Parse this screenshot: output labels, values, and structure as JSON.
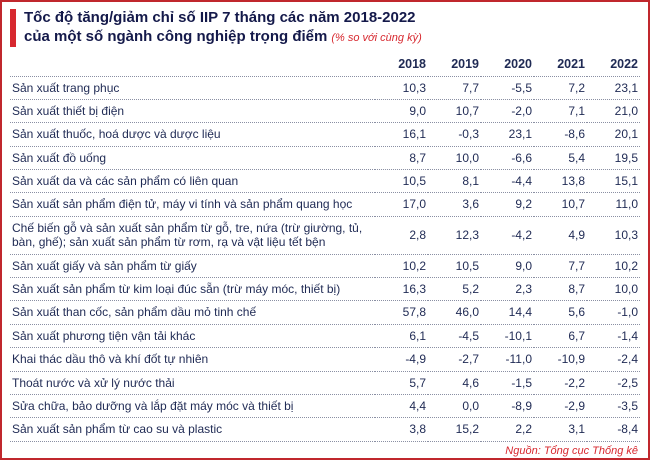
{
  "header": {
    "title_line1": "Tốc độ tăng/giảm chỉ số IIP 7 tháng các năm 2018-2022",
    "title_line2": "của một số ngành công nghiệp trọng điểm",
    "title_note": "(% so với cùng kỳ)"
  },
  "chart_data": {
    "type": "table",
    "columns": [
      "2018",
      "2019",
      "2020",
      "2021",
      "2022"
    ],
    "rows": [
      {
        "label": "Sản xuất trang phục",
        "values": [
          "10,3",
          "7,7",
          "-5,5",
          "7,2",
          "23,1"
        ]
      },
      {
        "label": "Sản xuất thiết bị điện",
        "values": [
          "9,0",
          "10,7",
          "-2,0",
          "7,1",
          "21,0"
        ]
      },
      {
        "label": "Sản xuất thuốc, hoá dược và dược liệu",
        "values": [
          "16,1",
          "-0,3",
          "23,1",
          "-8,6",
          "20,1"
        ]
      },
      {
        "label": "Sản xuất đồ uống",
        "values": [
          "8,7",
          "10,0",
          "-6,6",
          "5,4",
          "19,5"
        ]
      },
      {
        "label": "Sản xuất da và các sản phẩm có liên quan",
        "values": [
          "10,5",
          "8,1",
          "-4,4",
          "13,8",
          "15,1"
        ]
      },
      {
        "label": "Sản xuất sản phẩm điện tử, máy vi tính và sản phẩm quang học",
        "values": [
          "17,0",
          "3,6",
          "9,2",
          "10,7",
          "11,0"
        ]
      },
      {
        "label": "Chế biến gỗ và sản xuất sản phẩm từ gỗ, tre, nứa (trừ giường, tủ, bàn, ghế); sản xuất sản phẩm từ rơm, rạ và vật liệu tết bện",
        "values": [
          "2,8",
          "12,3",
          "-4,2",
          "4,9",
          "10,3"
        ]
      },
      {
        "label": "Sản xuất giấy và sản phẩm từ giấy",
        "values": [
          "10,2",
          "10,5",
          "9,0",
          "7,7",
          "10,2"
        ]
      },
      {
        "label": "Sản xuất sản phẩm từ kim loại đúc sẵn (trừ máy móc, thiết bị)",
        "values": [
          "16,3",
          "5,2",
          "2,3",
          "8,7",
          "10,0"
        ]
      },
      {
        "label": "Sản xuất than cốc, sản phẩm dầu mỏ tinh chế",
        "values": [
          "57,8",
          "46,0",
          "14,4",
          "5,6",
          "-1,0"
        ]
      },
      {
        "label": "Sản xuất phương tiện vận tải khác",
        "values": [
          "6,1",
          "-4,5",
          "-10,1",
          "6,7",
          "-1,4"
        ]
      },
      {
        "label": "Khai thác dầu thô và khí đốt tự nhiên",
        "values": [
          "-4,9",
          "-2,7",
          "-11,0",
          "-10,9",
          "-2,4"
        ]
      },
      {
        "label": "Thoát nước và xử lý nước thải",
        "values": [
          "5,7",
          "4,6",
          "-1,5",
          "-2,2",
          "-2,5"
        ]
      },
      {
        "label": "Sửa chữa, bảo dưỡng và lắp đặt máy móc và thiết bị",
        "values": [
          "4,4",
          "0,0",
          "-8,9",
          "-2,9",
          "-3,5"
        ]
      },
      {
        "label": "Sản xuất sản phẩm từ cao su và plastic",
        "values": [
          "3,8",
          "15,2",
          "2,2",
          "3,1",
          "-8,4"
        ]
      }
    ],
    "title": "Tốc độ tăng/giảm chỉ số IIP 7 tháng các năm 2018-2022 của một số ngành công nghiệp trọng điểm (% so với cùng kỳ)"
  },
  "footer": {
    "source": "Nguồn: Tổng cục Thống kê"
  }
}
